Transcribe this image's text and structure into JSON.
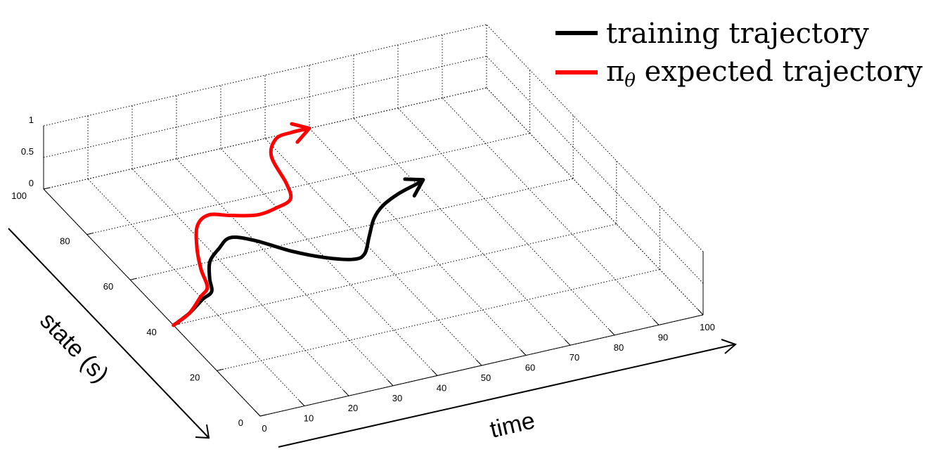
{
  "chart_data": {
    "type": "line",
    "title": "",
    "xlabel": "time",
    "ylabel": "state (s)",
    "xlim": [
      0,
      100
    ],
    "ylim": [
      0,
      100
    ],
    "zlim": [
      0,
      1
    ],
    "x_ticks": [
      "0",
      "10",
      "20",
      "30",
      "40",
      "50",
      "60",
      "70",
      "80",
      "90",
      "100"
    ],
    "y_ticks": [
      "0",
      "20",
      "40",
      "60",
      "80",
      "100"
    ],
    "z_ticks": [
      "0",
      "0.5",
      "1"
    ],
    "grid": true,
    "legend_position": "top-right",
    "legend": {
      "training": "training trajectory",
      "expected_symbol": "π",
      "expected_subscript": "θ",
      "expected_suffix": " expected trajectory"
    },
    "series": [
      {
        "key": "training",
        "color": "#000000",
        "points": [
          [
            0,
            40
          ],
          [
            5,
            43
          ],
          [
            10,
            47
          ],
          [
            13,
            49
          ],
          [
            15,
            54
          ],
          [
            18,
            60
          ],
          [
            22,
            64
          ],
          [
            26,
            67
          ],
          [
            30,
            64
          ],
          [
            35,
            57
          ],
          [
            40,
            52
          ],
          [
            45,
            49
          ],
          [
            48,
            50
          ],
          [
            52,
            56
          ],
          [
            56,
            62
          ],
          [
            60,
            66
          ],
          [
            65,
            69
          ],
          [
            70,
            71
          ],
          [
            72,
            72
          ]
        ]
      },
      {
        "key": "expected",
        "color": "#ff0000",
        "points": [
          [
            0,
            40
          ],
          [
            5,
            43
          ],
          [
            10,
            48
          ],
          [
            13,
            51
          ],
          [
            15,
            58
          ],
          [
            18,
            66
          ],
          [
            22,
            74
          ],
          [
            26,
            77
          ],
          [
            30,
            75
          ],
          [
            35,
            73
          ],
          [
            40,
            74
          ],
          [
            44,
            76
          ],
          [
            46,
            82
          ],
          [
            48,
            93
          ],
          [
            52,
            99
          ],
          [
            56,
            100
          ],
          [
            60,
            100
          ]
        ]
      }
    ]
  }
}
